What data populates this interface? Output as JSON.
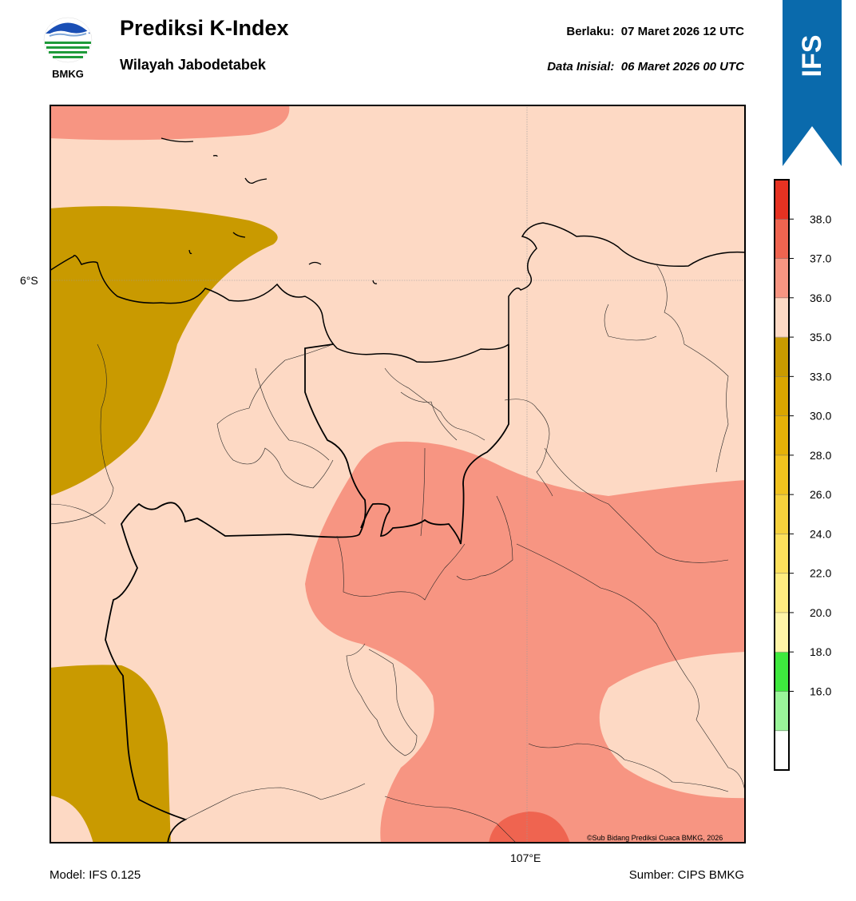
{
  "header": {
    "title": "Prediksi K-Index",
    "subtitle": "Wilayah Jabodetabek",
    "valid_label": "Berlaku:",
    "valid_value": "07 Maret 2026 12 UTC",
    "init_label": "Data Inisial:",
    "init_value": "06 Maret 2026 00 UTC"
  },
  "logo": {
    "icon": "bmkg-logo-icon",
    "text": "BMKG"
  },
  "banner": {
    "text": "IFS",
    "color": "#0a6aac"
  },
  "map": {
    "lat_tick": "6°S",
    "lon_tick": "107°E",
    "credit": "©Sub Bidang Prediksi Cuaca BMKG, 2026",
    "fill_colors": {
      "k_33_35": "#c99a00",
      "k_35_36": "#fdd9c4",
      "k_36_37": "#f79582",
      "k_37_38": "#ef6450"
    }
  },
  "colorbar": {
    "ticks": [
      "38.0",
      "37.0",
      "36.0",
      "35.0",
      "33.0",
      "30.0",
      "28.0",
      "26.0",
      "24.0",
      "22.0",
      "20.0",
      "18.0",
      "16.0"
    ],
    "colors_bottom_to_top": [
      "#ffffff",
      "#9af59a",
      "#3ee93e",
      "#fff5a8",
      "#ffec80",
      "#fde05c",
      "#f6d13c",
      "#f1c21e",
      "#e5b108",
      "#d9a500",
      "#c99a00",
      "#fdd9c4",
      "#f79582",
      "#ef6450",
      "#e63222"
    ]
  },
  "footer": {
    "model": "Model: IFS 0.125",
    "source": "Sumber: CIPS BMKG"
  }
}
